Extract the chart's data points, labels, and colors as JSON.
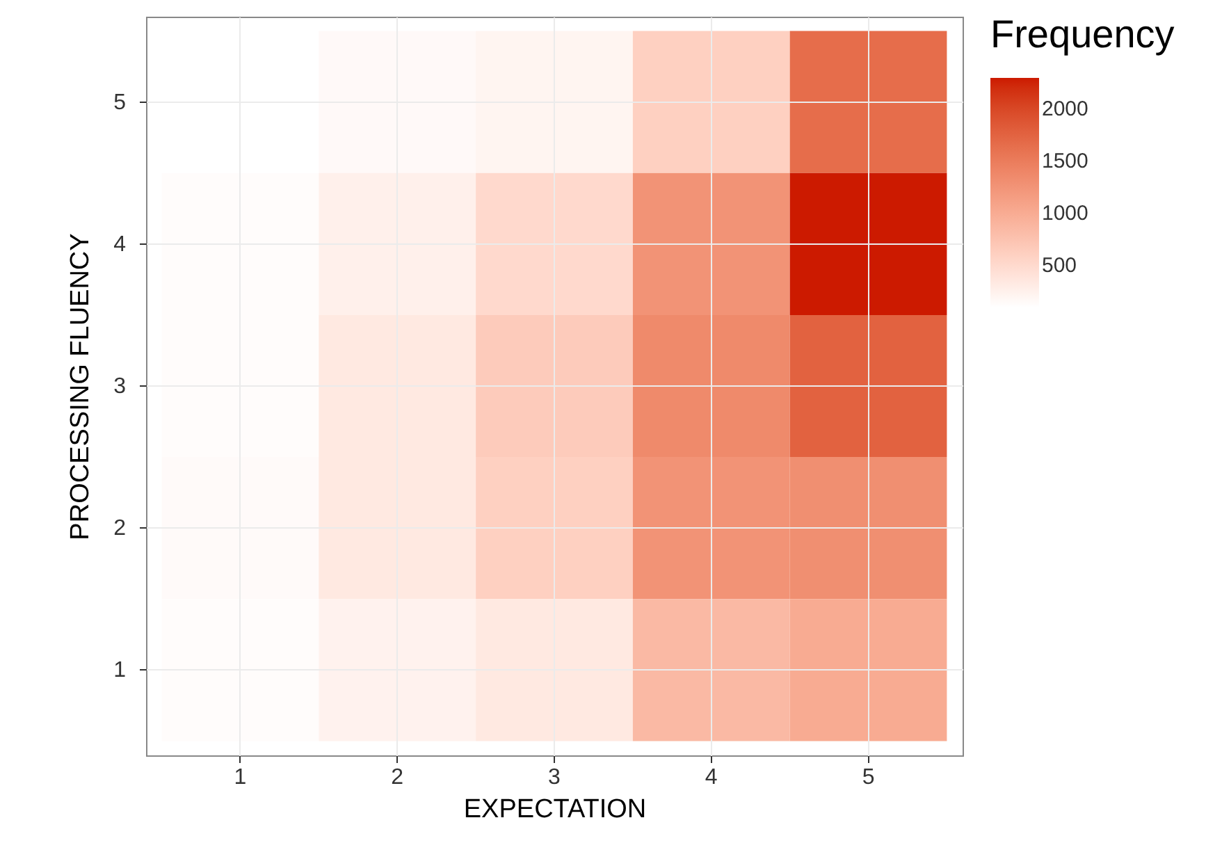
{
  "chart_data": {
    "type": "heatmap",
    "xlabel": "EXPECTATION",
    "ylabel": "PROCESSING FLUENCY",
    "clabel": "Frequency",
    "categories": [
      "1",
      "2",
      "3",
      "4",
      "5"
    ],
    "y_categories": [
      "5",
      "4",
      "3",
      "2",
      "1"
    ],
    "cells": [
      [
        90,
        150,
        200,
        600,
        1650
      ],
      [
        120,
        250,
        500,
        1250,
        2290
      ],
      [
        120,
        330,
        650,
        1350,
        1750
      ],
      [
        140,
        330,
        600,
        1250,
        1300
      ],
      [
        120,
        230,
        330,
        850,
        1000
      ]
    ],
    "clim": [
      90,
      2290
    ],
    "cticks": [
      500,
      1000,
      1500,
      2000
    ],
    "colors": [
      "#ffffff",
      "#cc1a00"
    ],
    "grid": true
  }
}
